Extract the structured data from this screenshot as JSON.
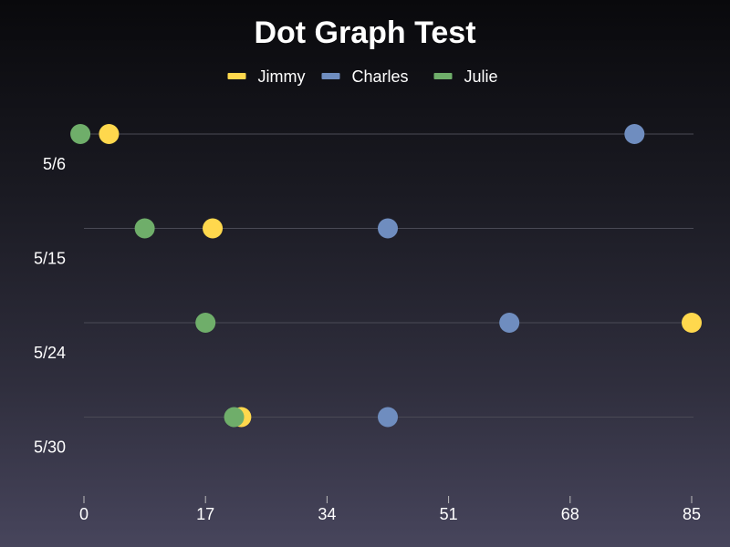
{
  "chart_data": {
    "type": "scatter",
    "subtype": "dot-plot-horizontal",
    "title": "Dot Graph Test",
    "categories": [
      "5/6",
      "5/15",
      "5/24",
      "5/30"
    ],
    "series": [
      {
        "name": "Jimmy",
        "color": "#ffd84d",
        "values": [
          3.5,
          18,
          85,
          22
        ]
      },
      {
        "name": "Charles",
        "color": "#6f8dbf",
        "values": [
          77,
          42.5,
          59.5,
          42.5
        ]
      },
      {
        "name": "Julie",
        "color": "#6fae6a",
        "values": [
          -0.5,
          8.5,
          17,
          21
        ]
      }
    ],
    "xlim": [
      0,
      85
    ],
    "xticks": [
      0,
      17,
      34,
      51,
      68,
      85
    ],
    "xtick_labels": [
      "0",
      "17",
      "34",
      "51",
      "68",
      "85"
    ],
    "legend_position": "top-center",
    "grid": true
  }
}
